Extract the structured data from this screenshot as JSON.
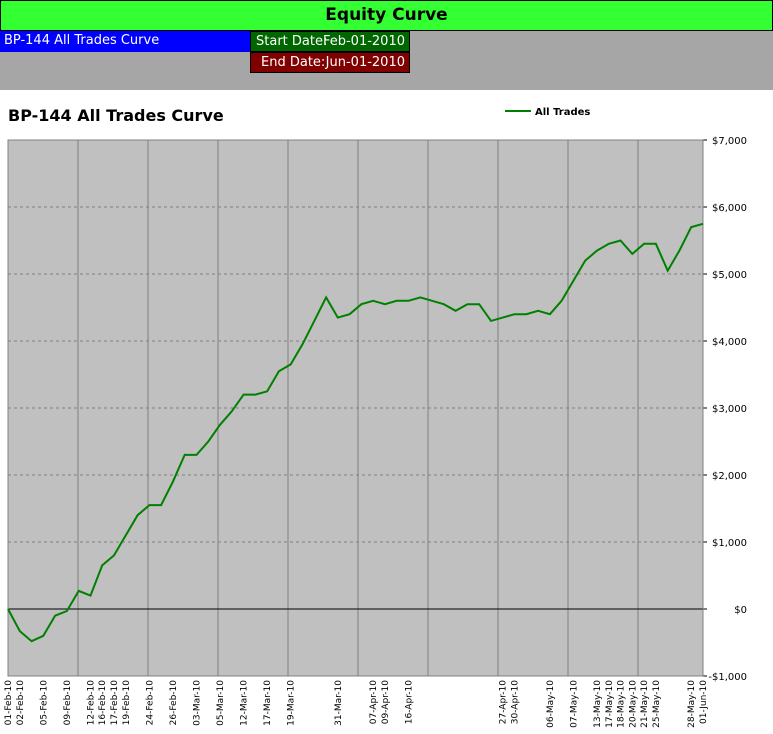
{
  "header": {
    "title": "Equity Curve",
    "sheet_label": "BP-144 All Trades Curve",
    "start_label": "Start Date:",
    "start_value": "Feb-01-2010",
    "end_label": "End Date:",
    "end_value": "Jun-01-2010"
  },
  "chart_data": {
    "type": "line",
    "title": "BP-144 All Trades Curve",
    "categories": [
      "01-Feb-10",
      "02-Feb-10",
      null,
      "05-Feb-10",
      null,
      "09-Feb-10",
      null,
      "12-Feb-10",
      "16-Feb-10",
      "17-Feb-10",
      "19-Feb-10",
      null,
      "24-Feb-10",
      null,
      "26-Feb-10",
      null,
      "03-Mar-10",
      null,
      "05-Mar-10",
      null,
      "12-Mar-10",
      null,
      "17-Mar-10",
      null,
      "19-Mar-10",
      null,
      null,
      null,
      "31-Mar-10",
      null,
      null,
      "07-Apr-10",
      "09-Apr-10",
      null,
      "16-Apr-10",
      null,
      null,
      null,
      null,
      null,
      null,
      null,
      "27-Apr-10",
      "30-Apr-10",
      null,
      null,
      "06-May-10",
      null,
      "07-May-10",
      null,
      "13-May-10",
      "17-May-10",
      "18-May-10",
      "20-May-10",
      "21-May-10",
      "25-May-10",
      null,
      null,
      "28-May-10",
      "01-Jun-10"
    ],
    "series": [
      {
        "name": "All Trades",
        "color": "#008000",
        "values": [
          0,
          -330,
          -480,
          -400,
          -100,
          -30,
          270,
          200,
          650,
          800,
          1100,
          1400,
          1550,
          1550,
          1900,
          2300,
          2300,
          2500,
          2750,
          2950,
          3200,
          3200,
          3250,
          3550,
          3650,
          3950,
          4300,
          4650,
          4350,
          4400,
          4550,
          4600,
          4550,
          4600,
          4600,
          4650,
          4600,
          4550,
          4450,
          4550,
          4550,
          4300,
          4350,
          4400,
          4400,
          4450,
          4400,
          4600,
          4900,
          5200,
          5350,
          5450,
          5500,
          5300,
          5450,
          5450,
          5050,
          5350,
          5700,
          5750
        ]
      }
    ],
    "ylim": [
      -1000,
      7000
    ],
    "yticks": [
      {
        "value": -1000,
        "label": "-$1,000"
      },
      {
        "value": 0,
        "label": "$0"
      },
      {
        "value": 1000,
        "label": "$1,000"
      },
      {
        "value": 2000,
        "label": "$2,000"
      },
      {
        "value": 3000,
        "label": "$3,000"
      },
      {
        "value": 4000,
        "label": "$4,000"
      },
      {
        "value": 5000,
        "label": "$5,000"
      },
      {
        "value": 6000,
        "label": "$6,000"
      },
      {
        "value": 7000,
        "label": "$7,000"
      }
    ],
    "grid": true,
    "legend": "top"
  }
}
